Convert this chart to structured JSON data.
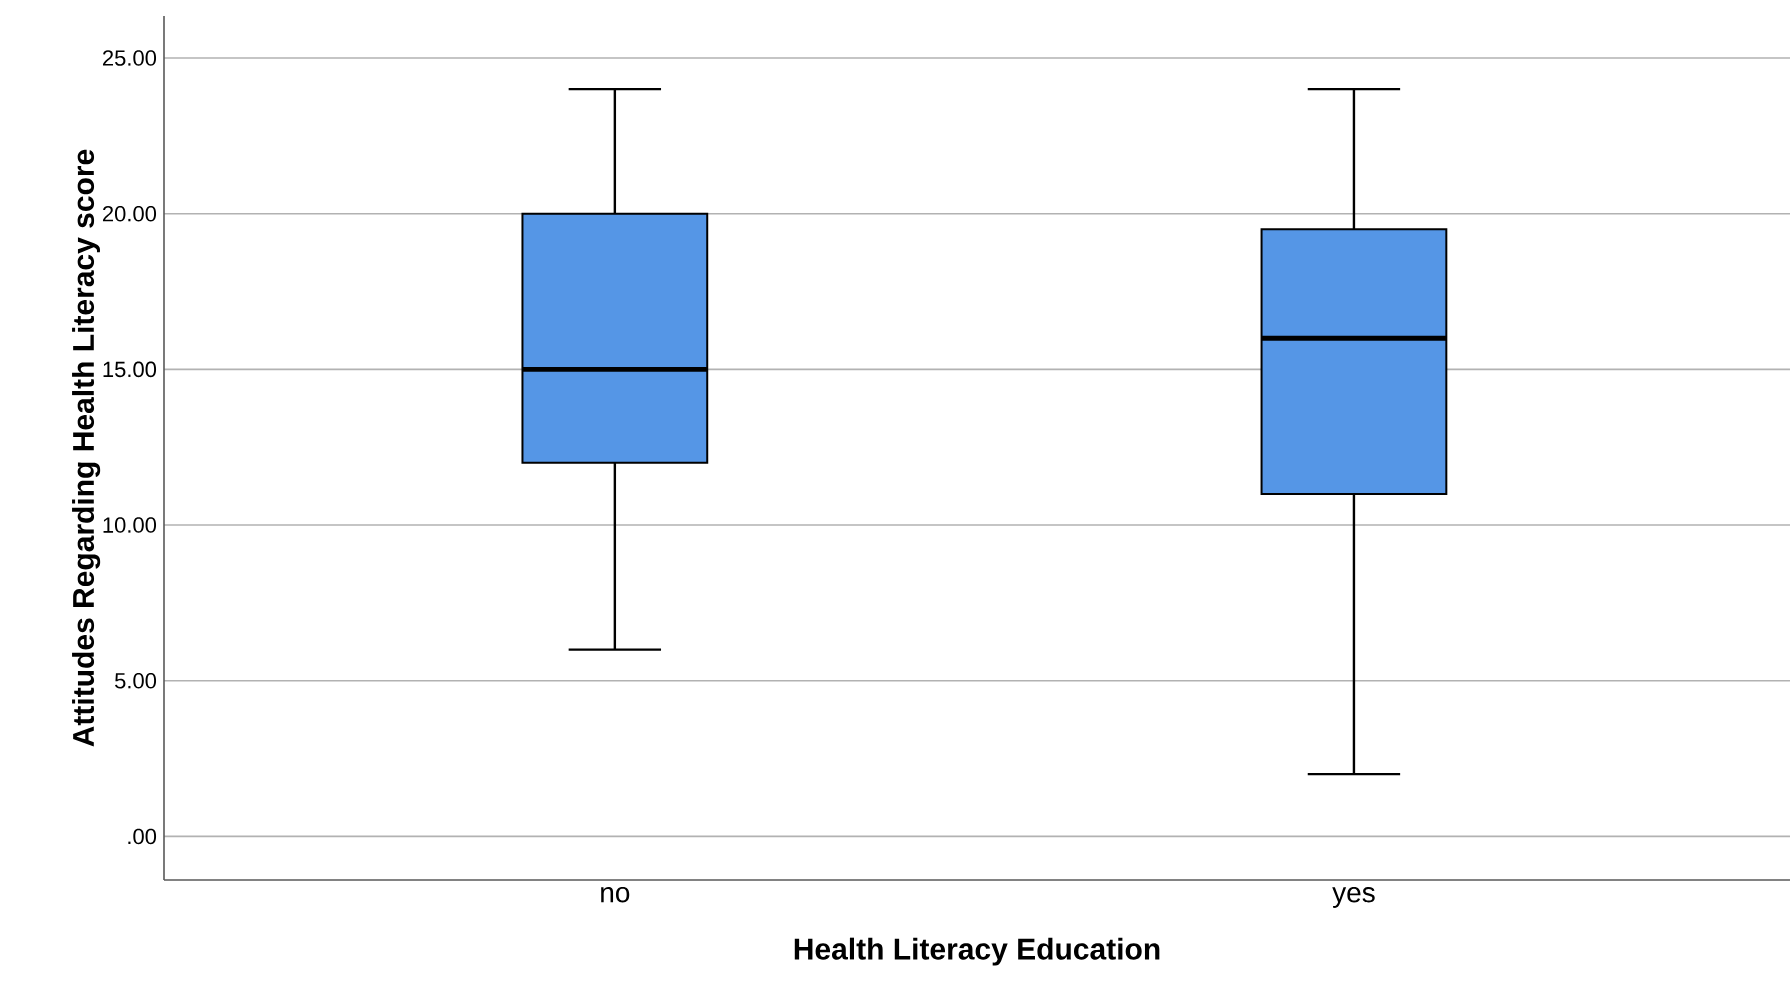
{
  "chart_data": {
    "type": "box",
    "xlabel": "Health Literacy Education",
    "ylabel": "Attitudes Regarding Health Literacy score",
    "categories": [
      "no",
      "yes"
    ],
    "boxes": [
      {
        "low": 6,
        "q1": 12,
        "median": 15,
        "q3": 20,
        "high": 24
      },
      {
        "low": 2,
        "q1": 11,
        "median": 16,
        "q3": 19.5,
        "high": 24
      }
    ],
    "color": "#5596e6",
    "ylim": [
      -1.4,
      26.35
    ],
    "yticks": [
      {
        "value": 0,
        "label": ".00"
      },
      {
        "value": 5,
        "label": "5.00"
      },
      {
        "value": 10,
        "label": "10.00"
      },
      {
        "value": 15,
        "label": "15.00"
      },
      {
        "value": 20,
        "label": "20.00"
      },
      {
        "value": 25,
        "label": "25.00"
      }
    ],
    "grid": "y"
  }
}
